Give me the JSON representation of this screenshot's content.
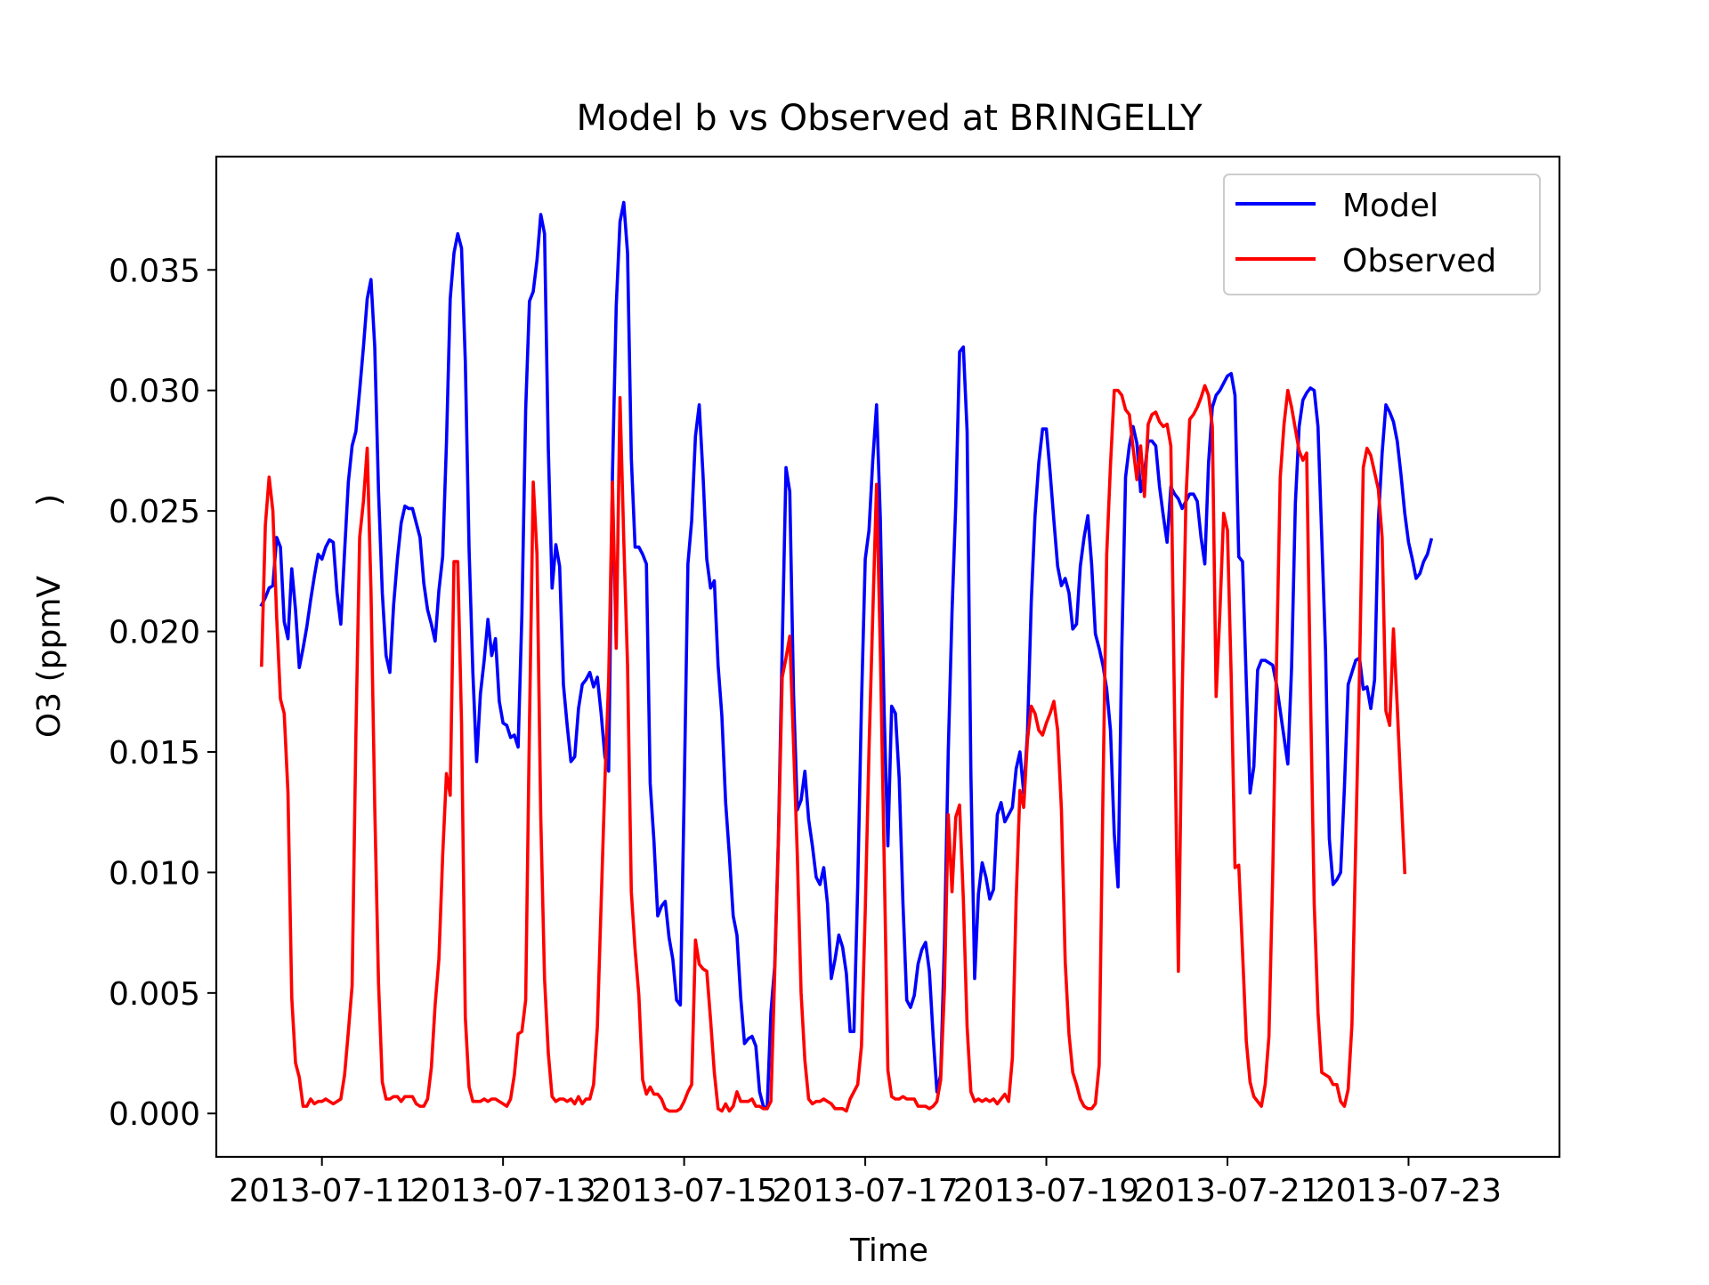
{
  "chart_data": {
    "type": "line",
    "title": "Model b vs Observed at BRINGELLY",
    "xlabel": "Time",
    "ylabel_part1": "O3 (ppmV",
    "ylabel_part2": ")",
    "xlim": [
      "2013-07-09T20:00",
      "2013-07-24T16:00"
    ],
    "ylim": [
      -0.0018,
      0.0397
    ],
    "x_ticks": [
      "2013-07-11",
      "2013-07-13",
      "2013-07-15",
      "2013-07-17",
      "2013-07-19",
      "2013-07-21",
      "2013-07-23"
    ],
    "y_ticks": [
      "0.000",
      "0.005",
      "0.010",
      "0.015",
      "0.020",
      "0.025",
      "0.030",
      "0.035"
    ],
    "grid": false,
    "legend_position": "upper right",
    "x_start": "2013-07-10T08:00",
    "x_step_hours": 1,
    "series": [
      {
        "name": "Model",
        "color": "#0000ff",
        "values": [
          0.0211,
          0.0214,
          0.0218,
          0.0219,
          0.0239,
          0.0235,
          0.0204,
          0.0197,
          0.0226,
          0.0209,
          0.0185,
          0.0193,
          0.0202,
          0.0213,
          0.0223,
          0.0232,
          0.023,
          0.0235,
          0.0238,
          0.0237,
          0.0216,
          0.0203,
          0.0233,
          0.0262,
          0.0277,
          0.0283,
          0.03,
          0.0318,
          0.0338,
          0.0346,
          0.0318,
          0.0258,
          0.0216,
          0.019,
          0.0183,
          0.0211,
          0.023,
          0.0245,
          0.0252,
          0.0251,
          0.0251,
          0.0245,
          0.0239,
          0.022,
          0.0209,
          0.0203,
          0.0196,
          0.0217,
          0.0231,
          0.0278,
          0.0338,
          0.0357,
          0.0365,
          0.0359,
          0.0312,
          0.0234,
          0.0183,
          0.0146,
          0.0174,
          0.0188,
          0.0205,
          0.019,
          0.0197,
          0.0171,
          0.0162,
          0.0161,
          0.0156,
          0.0157,
          0.0152,
          0.0207,
          0.0292,
          0.0337,
          0.0341,
          0.0354,
          0.0373,
          0.0365,
          0.0276,
          0.0218,
          0.0236,
          0.0227,
          0.0178,
          0.0161,
          0.0146,
          0.0148,
          0.0168,
          0.0178,
          0.018,
          0.0183,
          0.0177,
          0.0181,
          0.0166,
          0.0148,
          0.0142,
          0.0265,
          0.0335,
          0.037,
          0.0378,
          0.0357,
          0.0272,
          0.0235,
          0.0235,
          0.0232,
          0.0228,
          0.0137,
          0.0113,
          0.0082,
          0.0086,
          0.0088,
          0.0073,
          0.0064,
          0.0047,
          0.0045,
          0.0132,
          0.0228,
          0.0246,
          0.0281,
          0.0294,
          0.0265,
          0.023,
          0.0218,
          0.0221,
          0.0186,
          0.0165,
          0.0129,
          0.0107,
          0.0082,
          0.0074,
          0.0048,
          0.0029,
          0.0031,
          0.0032,
          0.0028,
          0.0009,
          0.0003,
          0.0002,
          0.0042,
          0.0061,
          0.0115,
          0.0194,
          0.0268,
          0.0258,
          0.0174,
          0.0126,
          0.013,
          0.0142,
          0.0122,
          0.0111,
          0.0098,
          0.0095,
          0.0102,
          0.0087,
          0.0056,
          0.0064,
          0.0074,
          0.0069,
          0.0058,
          0.0034,
          0.0034,
          0.0094,
          0.017,
          0.023,
          0.0242,
          0.0271,
          0.0294,
          0.0247,
          0.0167,
          0.0111,
          0.0169,
          0.0166,
          0.0139,
          0.0087,
          0.0047,
          0.0044,
          0.0049,
          0.0062,
          0.0068,
          0.0071,
          0.0059,
          0.0032,
          0.0009,
          0.0016,
          0.0071,
          0.015,
          0.0208,
          0.0253,
          0.0316,
          0.0318,
          0.0283,
          0.0141,
          0.0056,
          0.0091,
          0.0104,
          0.0098,
          0.0089,
          0.0093,
          0.0124,
          0.0129,
          0.0121,
          0.0124,
          0.0127,
          0.0143,
          0.015,
          0.0133,
          0.0158,
          0.0212,
          0.0248,
          0.027,
          0.0284,
          0.0284,
          0.0266,
          0.0246,
          0.0227,
          0.0219,
          0.0222,
          0.0216,
          0.0201,
          0.0203,
          0.0227,
          0.0239,
          0.0248,
          0.0228,
          0.0199,
          0.0193,
          0.0186,
          0.0176,
          0.0159,
          0.0116,
          0.0094,
          0.0193,
          0.0264,
          0.0277,
          0.0285,
          0.0278,
          0.0258,
          0.0266,
          0.0279,
          0.0279,
          0.0277,
          0.026,
          0.0248,
          0.0237,
          0.026,
          0.0257,
          0.0255,
          0.0251,
          0.0254,
          0.0257,
          0.0257,
          0.0254,
          0.0239,
          0.0228,
          0.027,
          0.0293,
          0.0298,
          0.03,
          0.0303,
          0.0306,
          0.0307,
          0.0298,
          0.0231,
          0.0229,
          0.0179,
          0.0133,
          0.0144,
          0.0184,
          0.0188,
          0.0188,
          0.0187,
          0.0186,
          0.0178,
          0.0167,
          0.0156,
          0.0145,
          0.0185,
          0.0253,
          0.0285,
          0.0296,
          0.0299,
          0.0301,
          0.03,
          0.0285,
          0.0239,
          0.0192,
          0.0114,
          0.0095,
          0.0097,
          0.01,
          0.0135,
          0.0178,
          0.0183,
          0.0188,
          0.0189,
          0.0176,
          0.0177,
          0.0168,
          0.018,
          0.0246,
          0.0274,
          0.0294,
          0.0291,
          0.0287,
          0.0279,
          0.0265,
          0.0249,
          0.0237,
          0.023,
          0.0222,
          0.0224,
          0.0229,
          0.0232,
          0.0238
        ]
      },
      {
        "name": "Observed",
        "color": "#ff0000",
        "values": [
          0.0186,
          0.0244,
          0.0264,
          0.025,
          0.0206,
          0.0172,
          0.0166,
          0.0133,
          0.0048,
          0.0021,
          0.0015,
          0.0003,
          0.0003,
          0.0006,
          0.0004,
          0.0005,
          0.0005,
          0.0006,
          0.0005,
          0.0004,
          0.0005,
          0.0006,
          0.0016,
          0.0034,
          0.0053,
          0.0157,
          0.0239,
          0.0254,
          0.0276,
          0.0217,
          0.0127,
          0.0054,
          0.0013,
          0.0006,
          0.0006,
          0.0007,
          0.0007,
          0.0005,
          0.0007,
          0.0007,
          0.0007,
          0.0004,
          0.0003,
          0.0003,
          0.0006,
          0.0019,
          0.0045,
          0.0064,
          0.0107,
          0.0141,
          0.0132,
          0.0229,
          0.0229,
          0.0162,
          0.004,
          0.0011,
          0.0005,
          0.0005,
          0.0005,
          0.0006,
          0.0005,
          0.0006,
          0.0006,
          0.0005,
          0.0004,
          0.0003,
          0.0006,
          0.0016,
          0.0033,
          0.0034,
          0.0047,
          0.0161,
          0.0262,
          0.0232,
          0.0123,
          0.0056,
          0.0025,
          0.0007,
          0.0005,
          0.0006,
          0.0006,
          0.0005,
          0.0006,
          0.0004,
          0.0007,
          0.0004,
          0.0006,
          0.0006,
          0.0012,
          0.0036,
          0.0087,
          0.0138,
          0.018,
          0.0262,
          0.0193,
          0.0297,
          0.0238,
          0.0186,
          0.0092,
          0.0068,
          0.0049,
          0.0014,
          0.0008,
          0.0011,
          0.0008,
          0.0008,
          0.0006,
          0.0002,
          0.0001,
          0.0001,
          0.0001,
          0.0002,
          0.0005,
          0.0009,
          0.0012,
          0.0072,
          0.0062,
          0.006,
          0.0059,
          0.0039,
          0.0017,
          0.0002,
          0.0001,
          0.0004,
          0.0001,
          0.0003,
          0.0009,
          0.0005,
          0.0005,
          0.0005,
          0.0006,
          0.0003,
          0.0003,
          0.0002,
          0.0002,
          0.0005,
          0.0058,
          0.0114,
          0.0181,
          0.0189,
          0.0198,
          0.0153,
          0.0107,
          0.005,
          0.0022,
          0.0006,
          0.0004,
          0.0005,
          0.0005,
          0.0006,
          0.0005,
          0.0004,
          0.0002,
          0.0002,
          0.0002,
          0.0001,
          0.0006,
          0.0009,
          0.0012,
          0.0028,
          0.0084,
          0.0151,
          0.0207,
          0.0261,
          0.0192,
          0.0107,
          0.0018,
          0.0007,
          0.0006,
          0.0006,
          0.0007,
          0.0006,
          0.0006,
          0.0006,
          0.0003,
          0.0003,
          0.0003,
          0.0002,
          0.0003,
          0.0005,
          0.0014,
          0.0052,
          0.0124,
          0.0092,
          0.0123,
          0.0128,
          0.0089,
          0.0036,
          0.0009,
          0.0005,
          0.0006,
          0.0005,
          0.0006,
          0.0005,
          0.0006,
          0.0004,
          0.0006,
          0.0008,
          0.0005,
          0.0023,
          0.0089,
          0.0134,
          0.0127,
          0.0155,
          0.0169,
          0.0166,
          0.0159,
          0.0157,
          0.0162,
          0.0166,
          0.0171,
          0.0159,
          0.0126,
          0.0063,
          0.0033,
          0.0017,
          0.0012,
          0.0006,
          0.0003,
          0.0002,
          0.0002,
          0.0004,
          0.002,
          0.0132,
          0.0232,
          0.0269,
          0.03,
          0.03,
          0.0298,
          0.0292,
          0.029,
          0.0276,
          0.0263,
          0.0277,
          0.0256,
          0.0286,
          0.029,
          0.0291,
          0.0287,
          0.0285,
          0.0286,
          0.0277,
          0.0164,
          0.0059,
          0.0173,
          0.0255,
          0.0288,
          0.029,
          0.0293,
          0.0297,
          0.0302,
          0.0298,
          0.0285,
          0.0173,
          0.0208,
          0.0249,
          0.0242,
          0.0181,
          0.0102,
          0.0103,
          0.0067,
          0.003,
          0.0013,
          0.0007,
          0.0005,
          0.0003,
          0.0012,
          0.0032,
          0.0099,
          0.0186,
          0.0264,
          0.0286,
          0.03,
          0.0293,
          0.0284,
          0.0275,
          0.0271,
          0.0274,
          0.0175,
          0.0087,
          0.0042,
          0.0017,
          0.0016,
          0.0015,
          0.0012,
          0.0012,
          0.0005,
          0.0003,
          0.001,
          0.0037,
          0.0112,
          0.0183,
          0.0268,
          0.0276,
          0.0273,
          0.0266,
          0.0259,
          0.0239,
          0.0167,
          0.0161,
          0.0201,
          0.0169,
          0.0134,
          0.01
        ]
      }
    ]
  }
}
